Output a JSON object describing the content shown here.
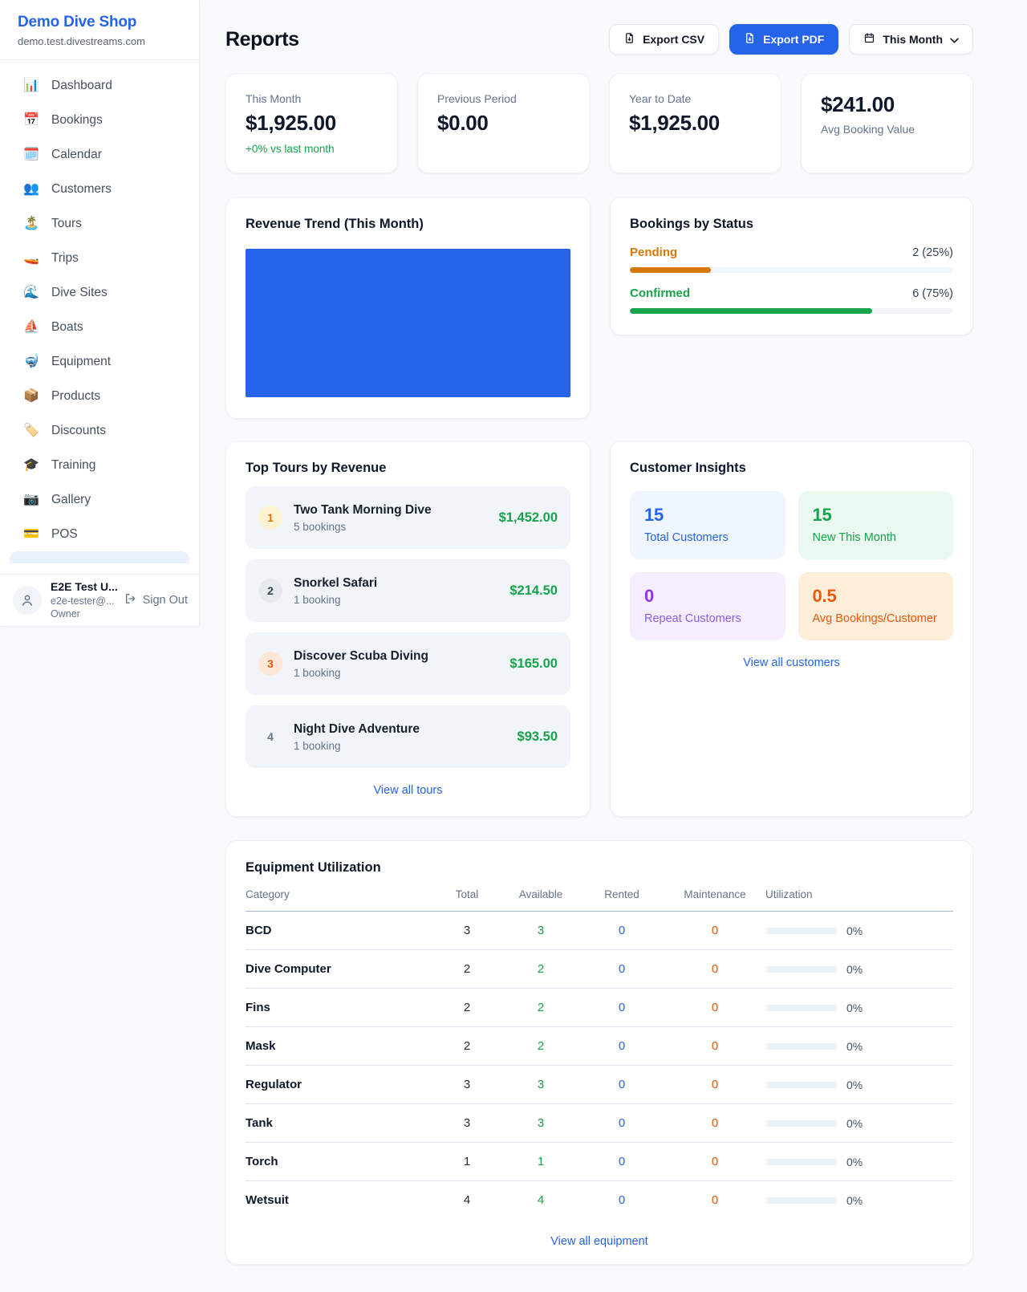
{
  "brand": {
    "name": "Demo Dive Shop",
    "domain": "demo.test.divestreams.com"
  },
  "sidebar": {
    "items": [
      {
        "icon": "📊",
        "label": "Dashboard"
      },
      {
        "icon": "📅",
        "label": "Bookings"
      },
      {
        "icon": "🗓️",
        "label": "Calendar"
      },
      {
        "icon": "👥",
        "label": "Customers"
      },
      {
        "icon": "🏝️",
        "label": "Tours"
      },
      {
        "icon": "🚤",
        "label": "Trips"
      },
      {
        "icon": "🌊",
        "label": "Dive Sites"
      },
      {
        "icon": "⛵",
        "label": "Boats"
      },
      {
        "icon": "🤿",
        "label": "Equipment"
      },
      {
        "icon": "📦",
        "label": "Products"
      },
      {
        "icon": "🏷️",
        "label": "Discounts"
      },
      {
        "icon": "🎓",
        "label": "Training"
      },
      {
        "icon": "📷",
        "label": "Gallery"
      },
      {
        "icon": "💳",
        "label": "POS"
      }
    ]
  },
  "user": {
    "name": "E2E Test U...",
    "email": "e2e-tester@...",
    "role": "Owner",
    "sign_out": "Sign Out"
  },
  "header": {
    "title": "Reports",
    "export_csv": "Export CSV",
    "export_pdf": "Export PDF",
    "period": "This Month"
  },
  "stats": {
    "this_month": {
      "label": "This Month",
      "value": "$1,925.00",
      "delta": "+0% vs last month"
    },
    "previous_period": {
      "label": "Previous Period",
      "value": "$0.00"
    },
    "year_to_date": {
      "label": "Year to Date",
      "value": "$1,925.00"
    },
    "avg_booking": {
      "value": "$241.00",
      "label": "Avg Booking Value"
    }
  },
  "revenue_trend": {
    "title": "Revenue Trend (This Month)"
  },
  "bookings_by_status": {
    "title": "Bookings by Status",
    "rows": [
      {
        "label": "Pending",
        "count": "2 (25%)",
        "pct": 25
      },
      {
        "label": "Confirmed",
        "count": "6 (75%)",
        "pct": 75
      }
    ]
  },
  "top_tours": {
    "title": "Top Tours by Revenue",
    "rows": [
      {
        "rank": "1",
        "name": "Two Tank Morning Dive",
        "bookings": "5 bookings",
        "amount": "$1,452.00"
      },
      {
        "rank": "2",
        "name": "Snorkel Safari",
        "bookings": "1 booking",
        "amount": "$214.50"
      },
      {
        "rank": "3",
        "name": "Discover Scuba Diving",
        "bookings": "1 booking",
        "amount": "$165.00"
      },
      {
        "rank": "4",
        "name": "Night Dive Adventure",
        "bookings": "1 booking",
        "amount": "$93.50"
      }
    ],
    "link": "View all tours"
  },
  "customer_insights": {
    "title": "Customer Insights",
    "tiles": [
      {
        "value": "15",
        "label": "Total Customers",
        "theme": "blue"
      },
      {
        "value": "15",
        "label": "New This Month",
        "theme": "green"
      },
      {
        "value": "0",
        "label": "Repeat Customers",
        "theme": "purple"
      },
      {
        "value": "0.5",
        "label": "Avg Bookings/Customer",
        "theme": "orange"
      }
    ],
    "link": "View all customers"
  },
  "equipment": {
    "title": "Equipment Utilization",
    "columns": [
      "Category",
      "Total",
      "Available",
      "Rented",
      "Maintenance",
      "Utilization"
    ],
    "rows": [
      {
        "category": "BCD",
        "total": "3",
        "available": "3",
        "rented": "0",
        "maintenance": "0",
        "utilization": "0%",
        "pct": 0
      },
      {
        "category": "Dive Computer",
        "total": "2",
        "available": "2",
        "rented": "0",
        "maintenance": "0",
        "utilization": "0%",
        "pct": 0
      },
      {
        "category": "Fins",
        "total": "2",
        "available": "2",
        "rented": "0",
        "maintenance": "0",
        "utilization": "0%",
        "pct": 0
      },
      {
        "category": "Mask",
        "total": "2",
        "available": "2",
        "rented": "0",
        "maintenance": "0",
        "utilization": "0%",
        "pct": 0
      },
      {
        "category": "Regulator",
        "total": "3",
        "available": "3",
        "rented": "0",
        "maintenance": "0",
        "utilization": "0%",
        "pct": 0
      },
      {
        "category": "Tank",
        "total": "3",
        "available": "3",
        "rented": "0",
        "maintenance": "0",
        "utilization": "0%",
        "pct": 0
      },
      {
        "category": "Torch",
        "total": "1",
        "available": "1",
        "rented": "0",
        "maintenance": "0",
        "utilization": "0%",
        "pct": 0
      },
      {
        "category": "Wetsuit",
        "total": "4",
        "available": "4",
        "rented": "0",
        "maintenance": "0",
        "utilization": "0%",
        "pct": 0
      }
    ],
    "link": "View all equipment"
  },
  "colors": {
    "accent": "#2563eb",
    "green": "#16a34a",
    "pending_orange": "#d97706",
    "maintenance_orange": "#ea580c",
    "purple": "#9333ea",
    "page_bg": "#f8fafc"
  },
  "chart_data": [
    {
      "type": "bar",
      "title": "Revenue Trend (This Month)",
      "categories": [
        "This Month"
      ],
      "values": [
        1925
      ],
      "note": "rendered as a single solid full-width blue block"
    },
    {
      "type": "bar",
      "title": "Bookings by Status",
      "categories": [
        "Pending",
        "Confirmed"
      ],
      "values": [
        2,
        6
      ],
      "percent": [
        25,
        75
      ]
    }
  ]
}
